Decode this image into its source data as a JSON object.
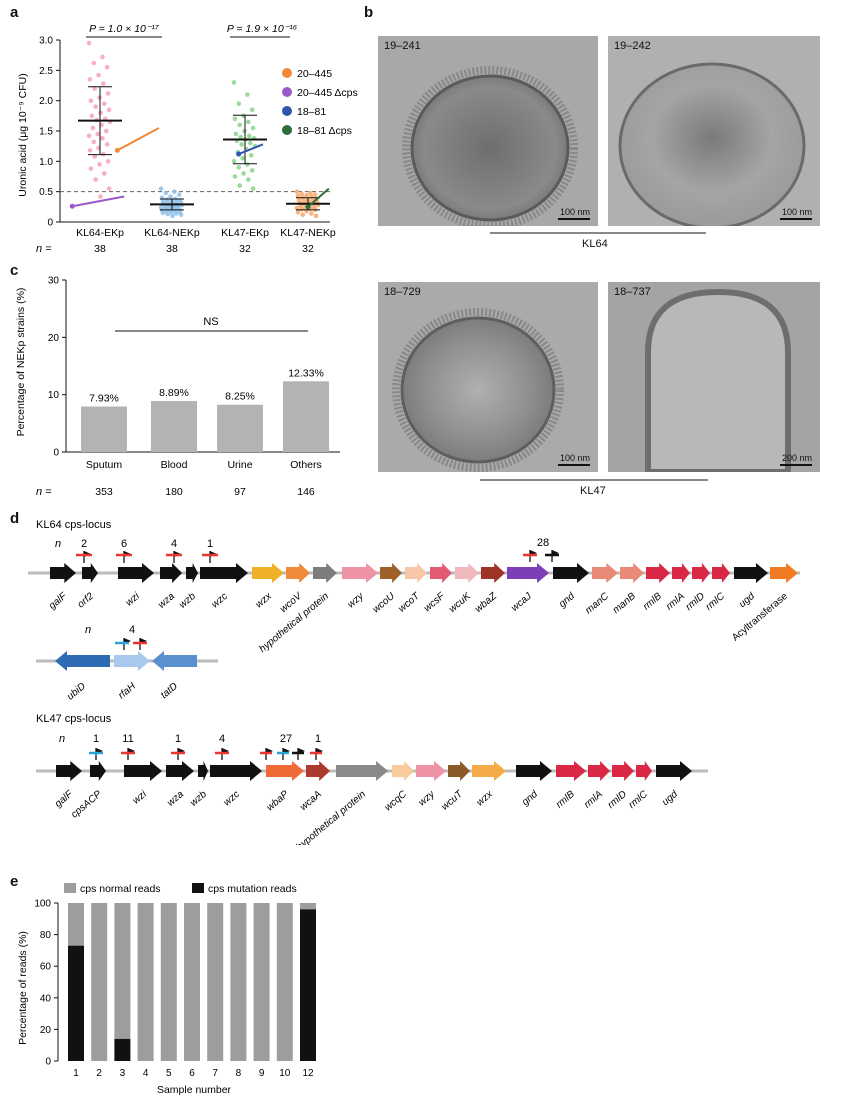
{
  "panels": {
    "a": "a",
    "b": "b",
    "c": "c",
    "d": "d",
    "e": "e"
  },
  "colors": {
    "c20_445": "#f08a3a",
    "c20_445_cps": "#9b59c9",
    "c18_81": "#2f55b0",
    "c18_81_cps": "#2e6e3a",
    "kl64_ekp": "#f4a0c0",
    "kl64_nekp": "#8ec0ea",
    "kl47_ekp": "#88d388",
    "kl47_nekp": "#f5a86a",
    "bar_gray": "#b3b3b3"
  },
  "panel_a": {
    "ylabel": "Uronic acid (μg 10⁻⁹ CFU)",
    "pvalue1": "P = 1.0 × 10⁻¹⁷",
    "pvalue2": "P = 1.9 × 10⁻¹⁶",
    "n_label": "n =",
    "legend": [
      "20–445",
      "20–445 Δcps",
      "18–81",
      "18–81 Δcps"
    ]
  },
  "panel_b": {
    "images": [
      {
        "tag": "19–241",
        "scale": "100 nm"
      },
      {
        "tag": "19–242",
        "scale": "100 nm"
      },
      {
        "tag": "18–729",
        "scale": "100 nm"
      },
      {
        "tag": "18–737",
        "scale": "200 nm"
      }
    ],
    "group1": "KL64",
    "group2": "KL47"
  },
  "panel_c": {
    "ylabel": "Percentage of NEKp strains (%)",
    "ns": "NS",
    "n_label": "n ="
  },
  "panel_d": {
    "kl64_title": "KL64 cps-locus",
    "kl47_title": "KL47 cps-locus",
    "n": "n",
    "kl64_counts": [
      "2",
      "6",
      "4",
      "1",
      "28"
    ],
    "rfah_count": "4",
    "kl47_counts": [
      "1",
      "11",
      "1",
      "4",
      "27",
      "1"
    ],
    "kl64_genes": [
      "galF",
      "orf2",
      "wzi",
      "wza",
      "wzb",
      "wzc",
      "wzx",
      "wcoV",
      "hypothetical protein",
      "wzy",
      "wcoU",
      "wcoT",
      "wcsF",
      "wcuK",
      "wbaZ",
      "wcaJ",
      "gnd",
      "manC",
      "manB",
      "rmlB",
      "rmlA",
      "rmlD",
      "rmlC",
      "ugd",
      "Acyltransferase"
    ],
    "rfah_genes": [
      "ubiD",
      "rfaH",
      "tatD"
    ],
    "kl47_genes": [
      "galF",
      "cpsACP",
      "wzi",
      "wza",
      "wzb",
      "wzc",
      "wbaP",
      "wcaA",
      "hypothetical protein",
      "wcqC",
      "wzy",
      "wcuT",
      "wzx",
      "gnd",
      "rmlB",
      "rmlA",
      "rmlD",
      "rmlC",
      "ugd"
    ]
  },
  "panel_e": {
    "legend": [
      "cps normal reads",
      "cps mutation reads"
    ],
    "ylabel": "Percentage of reads (%)",
    "xlabel": "Sample number"
  },
  "chart_data": [
    {
      "type": "scatter",
      "panel": "a",
      "categories": [
        "KL64-EKp",
        "KL64-NEKp",
        "KL47-EKp",
        "KL47-NEKp"
      ],
      "n": [
        "38",
        "38",
        "32",
        "32"
      ],
      "means": [
        1.67,
        0.29,
        1.36,
        0.3
      ],
      "sd_upper": [
        2.23,
        0.38,
        1.76,
        0.4
      ],
      "sd_lower": [
        1.11,
        0.2,
        0.96,
        0.2
      ],
      "threshold": 0.5,
      "ylim": [
        0,
        3.0
      ],
      "yticks": [
        "0",
        "0.5",
        "1.0",
        "1.5",
        "2.0",
        "2.5",
        "3.0"
      ],
      "points": [
        [
          2.95,
          2.72,
          2.62,
          2.55,
          2.42,
          2.35,
          2.28,
          2.2,
          2.12,
          2.05,
          2.0,
          1.95,
          1.9,
          1.85,
          1.8,
          1.75,
          1.7,
          1.68,
          1.65,
          1.6,
          1.55,
          1.5,
          1.45,
          1.42,
          1.38,
          1.32,
          1.28,
          1.22,
          1.18,
          1.12,
          1.08,
          1.0,
          0.95,
          0.88,
          0.8,
          0.7,
          0.55,
          0.42
        ],
        [
          0.55,
          0.5,
          0.48,
          0.45,
          0.42,
          0.4,
          0.38,
          0.37,
          0.36,
          0.35,
          0.34,
          0.33,
          0.32,
          0.31,
          0.3,
          0.3,
          0.29,
          0.28,
          0.28,
          0.27,
          0.26,
          0.25,
          0.25,
          0.24,
          0.23,
          0.22,
          0.21,
          0.2,
          0.2,
          0.19,
          0.18,
          0.17,
          0.16,
          0.15,
          0.14,
          0.13,
          0.12,
          0.1
        ],
        [
          2.3,
          2.1,
          1.95,
          1.85,
          1.75,
          1.7,
          1.65,
          1.6,
          1.55,
          1.5,
          1.45,
          1.42,
          1.4,
          1.38,
          1.36,
          1.34,
          1.3,
          1.28,
          1.25,
          1.2,
          1.15,
          1.1,
          1.05,
          1.0,
          0.95,
          0.9,
          0.85,
          0.8,
          0.75,
          0.7,
          0.6,
          0.55
        ],
        [
          0.5,
          0.48,
          0.46,
          0.45,
          0.44,
          0.43,
          0.42,
          0.4,
          0.38,
          0.37,
          0.36,
          0.35,
          0.34,
          0.33,
          0.32,
          0.31,
          0.3,
          0.29,
          0.28,
          0.27,
          0.26,
          0.25,
          0.24,
          0.23,
          0.22,
          0.21,
          0.2,
          0.18,
          0.16,
          0.14,
          0.12,
          0.1
        ]
      ],
      "connectors": [
        {
          "name": "20–445",
          "from": [
            1.25,
            1.18
          ],
          "to": [
            1.85,
            1.55
          ]
        },
        {
          "name": "20–445 Δcps",
          "from": [
            0.6,
            0.26
          ],
          "to": [
            1.35,
            0.42
          ]
        },
        {
          "name": "18–81",
          "from": [
            3.0,
            1.12
          ],
          "to": [
            3.35,
            1.28
          ]
        },
        {
          "name": "18–81 Δcps",
          "from": [
            4.0,
            0.25
          ],
          "to": [
            4.3,
            0.55
          ]
        }
      ]
    },
    {
      "type": "bar",
      "panel": "c",
      "categories": [
        "Sputum",
        "Blood",
        "Urine",
        "Others"
      ],
      "values": [
        7.93,
        8.89,
        8.25,
        12.33
      ],
      "value_labels": [
        "7.93%",
        "8.89%",
        "8.25%",
        "12.33%"
      ],
      "n": [
        "353",
        "180",
        "97",
        "146"
      ],
      "ylim": [
        0,
        30
      ],
      "yticks": [
        "0",
        "10",
        "20",
        "30"
      ]
    },
    {
      "type": "bar",
      "panel": "e",
      "stacked": true,
      "categories": [
        "1",
        "2",
        "3",
        "4",
        "5",
        "6",
        "7",
        "8",
        "9",
        "10",
        "12"
      ],
      "series": [
        {
          "name": "cps mutation reads",
          "values": [
            73,
            0,
            14,
            0,
            0,
            0,
            0,
            0,
            0,
            0,
            96
          ]
        },
        {
          "name": "cps normal reads",
          "values": [
            27,
            100,
            86,
            100,
            100,
            100,
            100,
            100,
            100,
            100,
            4
          ]
        }
      ],
      "ylim": [
        0,
        100
      ],
      "yticks": [
        "0",
        "20",
        "40",
        "60",
        "80",
        "100"
      ]
    }
  ]
}
